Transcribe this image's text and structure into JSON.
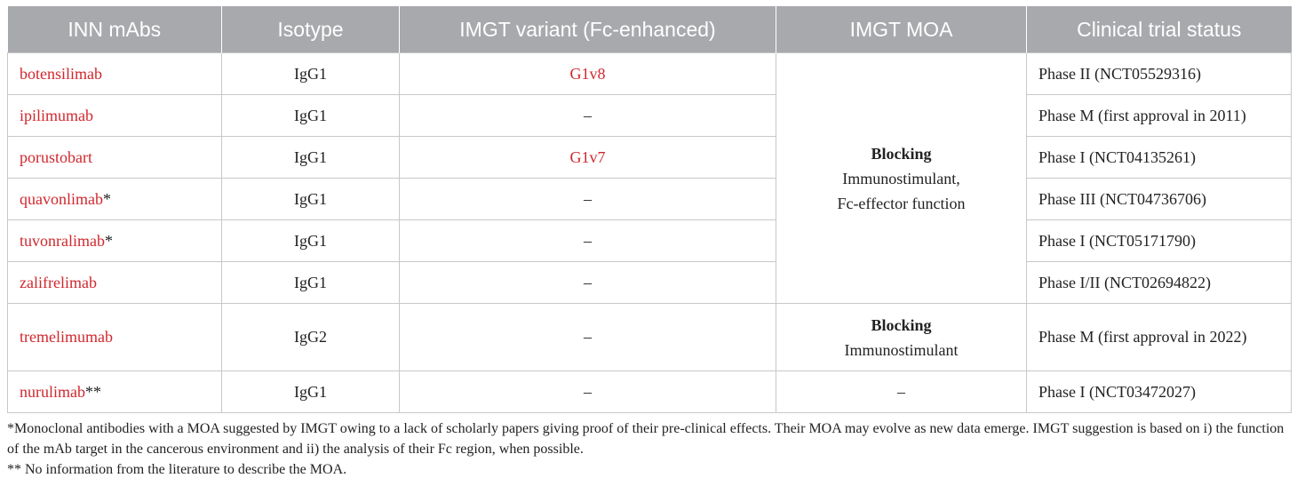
{
  "table": {
    "headers": [
      "INN mAbs",
      "Isotype",
      "IMGT variant (Fc-enhanced)",
      "IMGT MOA",
      "Clinical trial status"
    ],
    "rows": [
      {
        "name": "botensilimab",
        "mark": "",
        "isotype": "IgG1",
        "variant": "G1v8",
        "status": "Phase II (NCT05529316)"
      },
      {
        "name": "ipilimumab",
        "mark": "",
        "isotype": "IgG1",
        "variant": "–",
        "status": "Phase M (first approval in 2011)"
      },
      {
        "name": "porustobart",
        "mark": "",
        "isotype": "IgG1",
        "variant": "G1v7",
        "status": "Phase I (NCT04135261)"
      },
      {
        "name": "quavonlimab",
        "mark": "*",
        "isotype": "IgG1",
        "variant": "–",
        "status": "Phase III (NCT04736706)"
      },
      {
        "name": "tuvonralimab",
        "mark": "*",
        "isotype": "IgG1",
        "variant": "–",
        "status": "Phase I (NCT05171790)"
      },
      {
        "name": "zalifrelimab",
        "mark": "",
        "isotype": "IgG1",
        "variant": "–",
        "status": "Phase I/II (NCT02694822)"
      },
      {
        "name": "tremelimumab",
        "mark": "",
        "isotype": "IgG2",
        "variant": "–",
        "status": "Phase M (first approval in 2022)"
      },
      {
        "name": "nurulimab",
        "mark": "**",
        "isotype": "IgG1",
        "variant": "–",
        "status": "Phase I (NCT03472027)"
      }
    ],
    "moa_groups": [
      {
        "title": "Blocking",
        "line1": "Immunostimulant,",
        "line2": "Fc-effector function"
      },
      {
        "title": "Blocking",
        "line1": "Immunostimulant",
        "line2": ""
      },
      {
        "title": "",
        "line1": "–",
        "line2": ""
      }
    ]
  },
  "footnotes": [
    "*Monoclonal antibodies with a MOA suggested by IMGT owing to a lack of scholarly papers giving proof of their pre-clinical effects. Their MOA may evolve as new data emerge. IMGT suggestion is based on i) the function of the mAb target in the cancerous environment and ii) the analysis of their Fc region, when possible.",
    "** No information from the literature to describe the MOA."
  ],
  "colors": {
    "header_bg": "#a7a9ac",
    "header_text": "#ffffff",
    "name_red": "#d0282e",
    "border": "#c8c8c8"
  }
}
